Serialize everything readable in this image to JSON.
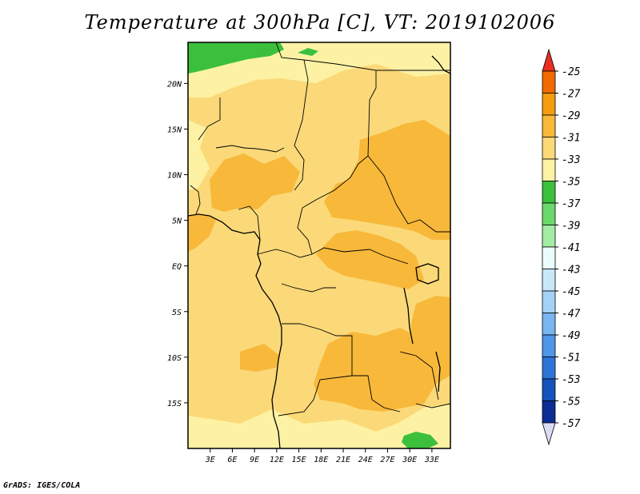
{
  "title": "Temperature at 300hPa [C], VT: 2019102006",
  "credit": "GrADS: IGES/COLA",
  "map": {
    "lon_range": [
      0,
      35.5
    ],
    "lat_range": [
      -20,
      24.5
    ],
    "lon_ticks": [
      "3E",
      "6E",
      "9E",
      "12E",
      "15E",
      "18E",
      "21E",
      "24E",
      "27E",
      "30E",
      "33E"
    ],
    "lat_ticks": [
      "20N",
      "15N",
      "10N",
      "5N",
      "EQ",
      "5S",
      "10S",
      "15S"
    ]
  },
  "colorbar": {
    "labels": [
      "-25",
      "-27",
      "-29",
      "-31",
      "-33",
      "-35",
      "-37",
      "-39",
      "-41",
      "-43",
      "-45",
      "-47",
      "-49",
      "-51",
      "-53",
      "-55",
      "-57"
    ],
    "colors": [
      "#e83020",
      "#f06a00",
      "#f59c10",
      "#f8b83a",
      "#fbd978",
      "#fdf2a4",
      "#3cc03c",
      "#6ad86a",
      "#a4eca4",
      "#ecfcfc",
      "#c8e8fa",
      "#a4d2f6",
      "#78b6f0",
      "#4f96e8",
      "#2e74d8",
      "#1652bc",
      "#0c2c96",
      "#1a1060",
      "#dcdcf4"
    ]
  },
  "colors": {
    "base": "#fbd978",
    "warm": "#f8b83a",
    "cool": "#fdf2a4",
    "green": "#3cc03c"
  }
}
